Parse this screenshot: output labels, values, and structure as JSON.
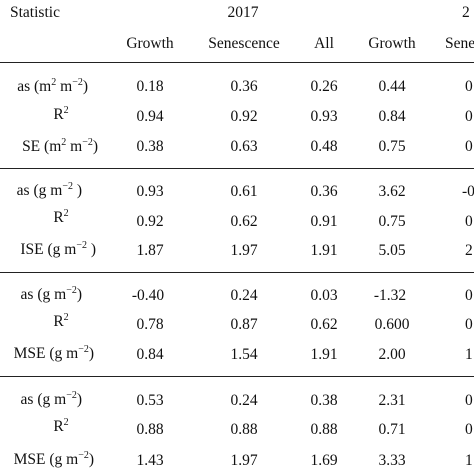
{
  "header": {
    "statistic": "Statistic",
    "year_2017": "2017",
    "year_next": "2",
    "sub_cols": [
      "Growth",
      "Senescence",
      "All",
      "Growth",
      "Sene"
    ]
  },
  "groups": [
    {
      "rows": [
        {
          "label": "as (m",
          "exp1": "2",
          "mid": " m",
          "exp2": "−2",
          "tail": ")",
          "cells": [
            "0.18",
            "0.36",
            "0.26",
            "0.44",
            "0"
          ]
        },
        {
          "label": "R",
          "exp1": "2",
          "mid": "",
          "exp2": "",
          "tail": "",
          "cells": [
            "0.94",
            "0.92",
            "0.93",
            "0.84",
            "0"
          ]
        },
        {
          "label": "SE (m",
          "exp1": "2",
          "mid": " m",
          "exp2": "−2",
          "tail": ")",
          "cells": [
            "0.38",
            "0.63",
            "0.48",
            "0.75",
            "0"
          ]
        }
      ]
    },
    {
      "rows": [
        {
          "label": "as (g m",
          "exp1": "−2",
          "mid": "",
          "exp2": "",
          "tail": " )",
          "cells": [
            "0.93",
            "0.61",
            "0.36",
            "3.62",
            "-0"
          ]
        },
        {
          "label": "R",
          "exp1": "2",
          "mid": "",
          "exp2": "",
          "tail": "",
          "cells": [
            "0.92",
            "0.62",
            "0.91",
            "0.75",
            "0"
          ]
        },
        {
          "label": "ISE (g m",
          "exp1": "−2",
          "mid": "",
          "exp2": "",
          "tail": " )",
          "cells": [
            "1.87",
            "1.97",
            "1.91",
            "5.05",
            "2"
          ]
        }
      ]
    },
    {
      "rows": [
        {
          "label": "as (g m",
          "exp1": "−2",
          "mid": "",
          "exp2": "",
          "tail": ")",
          "cells": [
            "-0.40",
            "0.24",
            "0.03",
            "-1.32",
            "0"
          ]
        },
        {
          "label": "R",
          "exp1": "2",
          "mid": "",
          "exp2": "",
          "tail": "",
          "cells": [
            "0.78",
            "0.87",
            "0.62",
            "0.600",
            "0"
          ]
        },
        {
          "label": "MSE (g m",
          "exp1": "−2",
          "mid": "",
          "exp2": "",
          "tail": ")",
          "cells": [
            "0.84",
            "1.54",
            "1.91",
            "2.00",
            "1"
          ]
        }
      ]
    },
    {
      "rows": [
        {
          "label": "as (g m",
          "exp1": "−2",
          "mid": "",
          "exp2": "",
          "tail": ")",
          "cells": [
            "0.53",
            "0.24",
            "0.38",
            "2.31",
            "0"
          ]
        },
        {
          "label": "R",
          "exp1": "2",
          "mid": "",
          "exp2": "",
          "tail": "",
          "cells": [
            "0.88",
            "0.88",
            "0.88",
            "0.71",
            "0"
          ]
        },
        {
          "label": "MSE (g m",
          "exp1": "−2",
          "mid": "",
          "exp2": "",
          "tail": ")",
          "cells": [
            "1.43",
            "1.97",
            "1.69",
            "3.33",
            "1"
          ]
        }
      ]
    }
  ]
}
